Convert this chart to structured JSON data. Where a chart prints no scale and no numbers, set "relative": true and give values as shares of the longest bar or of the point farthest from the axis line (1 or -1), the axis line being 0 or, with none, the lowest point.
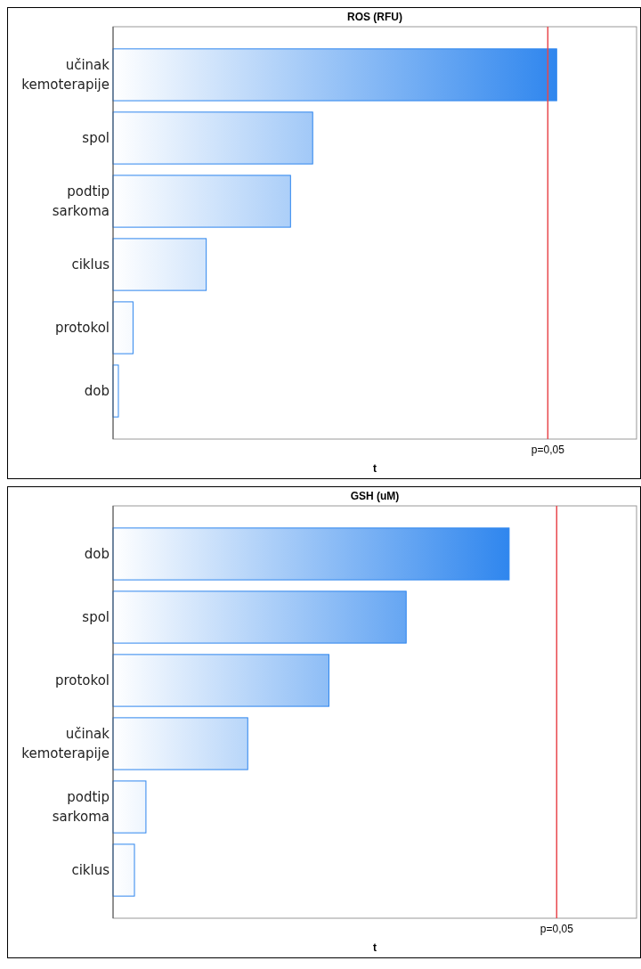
{
  "chart_data": [
    {
      "type": "bar",
      "orientation": "horizontal",
      "relative": true,
      "title": "ROS (RFU)",
      "xlabel": "t",
      "categories": [
        "učinak kemoterapije",
        "spol",
        "podtip sarkoma",
        "ciklus",
        "protokol",
        "dob"
      ],
      "values": [
        1,
        0.45,
        0.4,
        0.21,
        0.045,
        0.012
      ],
      "color": "#2f86ee",
      "grid": false,
      "ref_lines": [
        {
          "axis": "x",
          "value": 0.98,
          "color": "#e8474c"
        }
      ],
      "annotations": [
        "p=0,05"
      ]
    },
    {
      "type": "bar",
      "orientation": "horizontal",
      "relative": true,
      "title": "GSH (uM)",
      "xlabel": "t",
      "categories": [
        "dob",
        "spol",
        "protokol",
        "učinak kemoterapije",
        "podtip sarkoma",
        "ciklus"
      ],
      "values": [
        1,
        0.74,
        0.545,
        0.34,
        0.083,
        0.054
      ],
      "color": "#2f86ee",
      "grid": false,
      "ref_lines": [
        {
          "axis": "x",
          "value": 1.12,
          "color": "#e8474c"
        }
      ],
      "annotations": [
        "p=0,05"
      ]
    }
  ]
}
